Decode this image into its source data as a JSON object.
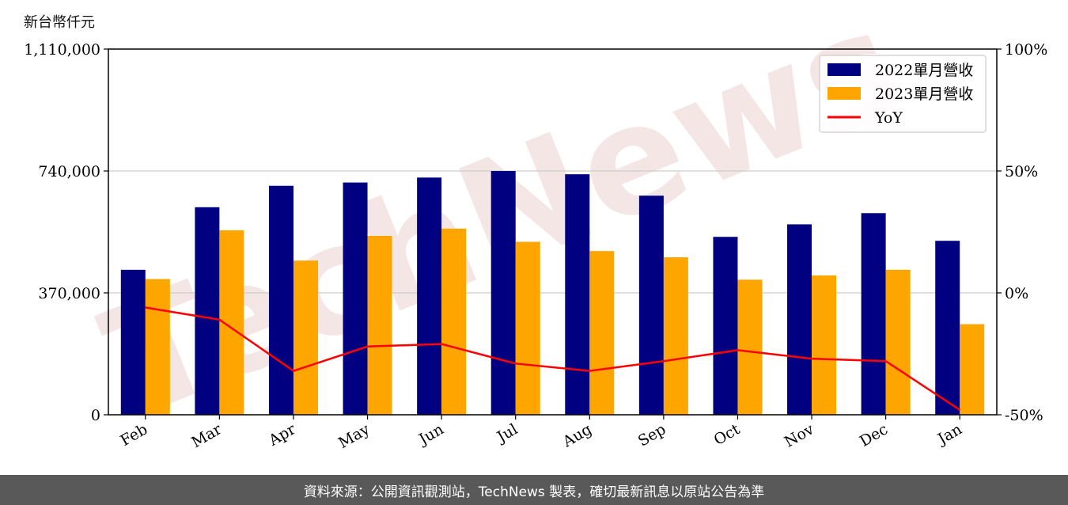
{
  "unit_label": "新台幣仟元",
  "watermark_text": "TechNews",
  "footer_text": "資料來源：公開資訊觀測站，TechNews 製表，確切最新訊息以原站公告為準",
  "colors": {
    "series_2022": "#000080",
    "series_2023": "#FFA500",
    "yoy": "#FF0000",
    "grid": "#cccccc",
    "watermark": "#f2dcdc",
    "footer_bg": "#595959"
  },
  "chart_data": {
    "type": "bar",
    "categories": [
      "Feb",
      "Mar",
      "Apr",
      "May",
      "Jun",
      "Jul",
      "Aug",
      "Sep",
      "Oct",
      "Nov",
      "Dec",
      "Jan"
    ],
    "series": [
      {
        "name": "2022單月營收",
        "values": [
          440000,
          630000,
          695000,
          705000,
          720000,
          740000,
          730000,
          665000,
          540000,
          578000,
          612000,
          528000
        ]
      },
      {
        "name": "2023單月營收",
        "values": [
          412000,
          560000,
          468000,
          543000,
          565000,
          525000,
          497000,
          478000,
          410000,
          423000,
          440000,
          275000
        ]
      }
    ],
    "line_series": {
      "name": "YoY",
      "axis": "right",
      "values": [
        -6,
        -11,
        -32,
        -22,
        -21,
        -29,
        -32,
        -28,
        -23.5,
        -27,
        -28,
        -48
      ]
    },
    "ylim": [
      0,
      1110000
    ],
    "y_ticks": [
      0,
      370000,
      740000,
      1110000
    ],
    "y_tick_labels": [
      "0",
      "370,000",
      "740,000",
      "1,110,000"
    ],
    "y2lim": [
      -50,
      100
    ],
    "y2_ticks": [
      -50,
      0,
      50,
      100
    ],
    "y2_tick_labels": [
      "-50%",
      "0%",
      "50%",
      "100%"
    ],
    "grid": "horizontal",
    "legend": "top-right",
    "xlabel": "",
    "ylabel": "",
    "title": ""
  }
}
